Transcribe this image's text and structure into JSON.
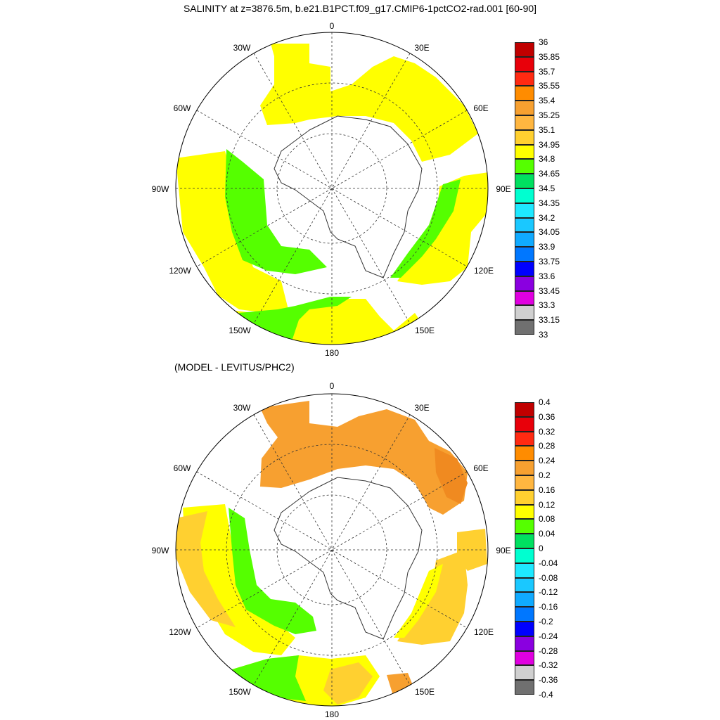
{
  "top_panel": {
    "title": "SALINITY at z=3876.5m, b.e21.B1PCT.f09_g17.CMIP6-1pctCO2-rad.001 [60-90]",
    "colorbar_labels": [
      "36",
      "35.85",
      "35.7",
      "35.55",
      "35.4",
      "35.25",
      "35.1",
      "34.95",
      "34.8",
      "34.65",
      "34.5",
      "34.35",
      "34.2",
      "34.05",
      "33.9",
      "33.75",
      "33.6",
      "33.45",
      "33.3",
      "33.15",
      "33"
    ],
    "colorbar_colors": [
      "#c00000",
      "#e8000a",
      "#ff2a12",
      "#ff8c00",
      "#f7a030",
      "#ffb640",
      "#ffd030",
      "#ffff00",
      "#55ff00",
      "#00e060",
      "#00ffd0",
      "#1ee8ff",
      "#1ac8ff",
      "#10aaff",
      "#0077ff",
      "#0000ff",
      "#8a00e0",
      "#e000e0",
      "#d0d0d0",
      "#707070"
    ]
  },
  "bottom_panel": {
    "title": "(MODEL - LEVITUS/PHC2)",
    "colorbar_labels": [
      "0.4",
      "0.36",
      "0.32",
      "0.28",
      "0.24",
      "0.2",
      "0.16",
      "0.12",
      "0.08",
      "0.04",
      "0",
      "-0.04",
      "-0.08",
      "-0.12",
      "-0.16",
      "-0.2",
      "-0.24",
      "-0.28",
      "-0.32",
      "-0.36",
      "-0.4"
    ],
    "colorbar_colors": [
      "#c00000",
      "#e8000a",
      "#ff2a12",
      "#ff8c00",
      "#f7a030",
      "#ffb640",
      "#ffd030",
      "#ffff00",
      "#55ff00",
      "#00e060",
      "#00ffd0",
      "#1ee8ff",
      "#1ac8ff",
      "#10aaff",
      "#0077ff",
      "#0000ff",
      "#8a00e0",
      "#e000e0",
      "#d0d0d0",
      "#707070"
    ]
  },
  "longitude_labels": [
    "0",
    "30E",
    "60E",
    "90E",
    "120E",
    "150E",
    "180",
    "150W",
    "120W",
    "90W",
    "60W",
    "30W"
  ],
  "map_colors": {
    "yellow": "#ffff00",
    "green": "#55ff00",
    "orange": "#f7a030",
    "light_orange": "#ffd030",
    "dark_orange": "#f08a20"
  }
}
